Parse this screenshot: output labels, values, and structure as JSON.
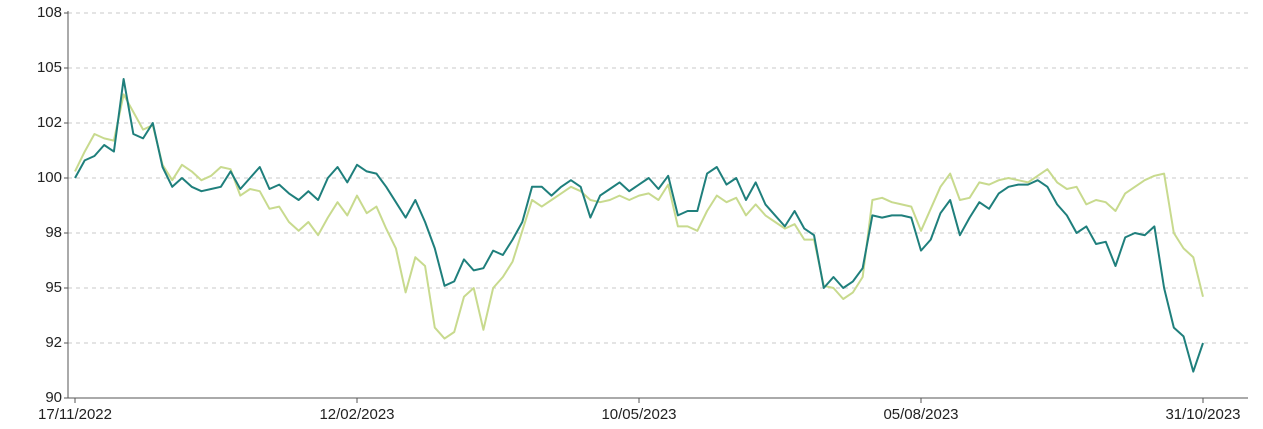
{
  "chart_data": {
    "type": "line",
    "x": [
      "17/11/2022",
      "20/11/2022",
      "23/11/2022",
      "26/11/2022",
      "29/11/2022",
      "02/12/2022",
      "05/12/2022",
      "08/12/2022",
      "11/12/2022",
      "14/12/2022",
      "17/12/2022",
      "20/12/2022",
      "23/12/2022",
      "26/12/2022",
      "29/12/2022",
      "01/01/2023",
      "04/01/2023",
      "07/01/2023",
      "10/01/2023",
      "13/01/2023",
      "16/01/2023",
      "19/01/2023",
      "22/01/2023",
      "25/01/2023",
      "28/01/2023",
      "31/01/2023",
      "03/02/2023",
      "06/02/2023",
      "09/02/2023",
      "12/02/2023",
      "15/02/2023",
      "18/02/2023",
      "21/02/2023",
      "24/02/2023",
      "27/02/2023",
      "02/03/2023",
      "05/03/2023",
      "08/03/2023",
      "11/03/2023",
      "14/03/2023",
      "17/03/2023",
      "20/03/2023",
      "23/03/2023",
      "26/03/2023",
      "29/03/2023",
      "01/04/2023",
      "04/04/2023",
      "07/04/2023",
      "10/04/2023",
      "13/04/2023",
      "16/04/2023",
      "19/04/2023",
      "22/04/2023",
      "25/04/2023",
      "28/04/2023",
      "01/05/2023",
      "04/05/2023",
      "07/05/2023",
      "10/05/2023",
      "13/05/2023",
      "16/05/2023",
      "19/05/2023",
      "22/05/2023",
      "25/05/2023",
      "28/05/2023",
      "31/05/2023",
      "03/06/2023",
      "06/06/2023",
      "09/06/2023",
      "12/06/2023",
      "15/06/2023",
      "18/06/2023",
      "21/06/2023",
      "24/06/2023",
      "27/06/2023",
      "30/06/2023",
      "03/07/2023",
      "06/07/2023",
      "09/07/2023",
      "12/07/2023",
      "15/07/2023",
      "18/07/2023",
      "21/07/2023",
      "24/07/2023",
      "27/07/2023",
      "30/07/2023",
      "02/08/2023",
      "05/08/2023",
      "08/08/2023",
      "11/08/2023",
      "14/08/2023",
      "17/08/2023",
      "20/08/2023",
      "23/08/2023",
      "26/08/2023",
      "29/08/2023",
      "01/09/2023",
      "04/09/2023",
      "07/09/2023",
      "10/09/2023",
      "13/09/2023",
      "16/09/2023",
      "19/09/2023",
      "22/09/2023",
      "25/09/2023",
      "28/09/2023",
      "01/10/2023",
      "04/10/2023",
      "07/10/2023",
      "10/10/2023",
      "13/10/2023",
      "16/10/2023",
      "19/10/2023",
      "22/10/2023",
      "25/10/2023",
      "28/10/2023",
      "31/10/2023"
    ],
    "series": [
      {
        "color": "#c8da8e",
        "values": [
          100.3,
          101.2,
          102.0,
          101.8,
          101.7,
          103.8,
          103.0,
          102.2,
          102.4,
          100.6,
          99.9,
          100.6,
          100.3,
          99.9,
          100.1,
          100.5,
          100.4,
          99.2,
          99.5,
          99.4,
          98.6,
          98.7,
          98.0,
          97.6,
          98.0,
          97.4,
          98.2,
          98.9,
          98.3,
          99.2,
          98.4,
          98.7,
          97.7,
          96.8,
          94.8,
          96.4,
          96.0,
          93.2,
          92.7,
          93.0,
          94.6,
          95.0,
          93.1,
          95.0,
          95.5,
          96.2,
          97.6,
          99.0,
          98.7,
          99.0,
          99.3,
          99.6,
          99.4,
          99.0,
          98.9,
          99.0,
          99.2,
          99.0,
          99.2,
          99.3,
          99.0,
          99.7,
          97.8,
          97.8,
          97.6,
          98.5,
          99.2,
          98.9,
          99.1,
          98.3,
          98.8,
          98.3,
          98.0,
          97.7,
          97.9,
          97.2,
          97.2,
          95.1,
          95.0,
          94.5,
          94.8,
          95.5,
          99.0,
          99.1,
          98.9,
          98.8,
          98.7,
          97.6,
          98.6,
          99.6,
          100.2,
          99.0,
          99.1,
          99.8,
          99.7,
          99.9,
          100.0,
          99.9,
          99.8,
          100.1,
          100.4,
          99.8,
          99.5,
          99.6,
          98.8,
          99.0,
          98.9,
          98.5,
          99.3,
          99.6,
          99.9,
          100.1,
          100.2,
          97.5,
          96.8,
          96.4,
          94.6
        ]
      },
      {
        "color": "#1f7f7c",
        "values": [
          100.0,
          100.8,
          101.0,
          101.5,
          101.2,
          104.5,
          102.0,
          101.8,
          102.5,
          100.5,
          99.6,
          100.0,
          99.6,
          99.4,
          99.5,
          99.6,
          100.3,
          99.5,
          100.0,
          100.5,
          99.5,
          99.7,
          99.3,
          99.0,
          99.4,
          99.0,
          100.0,
          100.5,
          99.8,
          100.6,
          100.3,
          100.2,
          99.6,
          98.9,
          98.2,
          99.0,
          98.0,
          96.8,
          95.1,
          95.3,
          96.3,
          95.8,
          95.9,
          96.7,
          96.5,
          97.2,
          98.0,
          99.6,
          99.6,
          99.2,
          99.6,
          99.9,
          99.6,
          98.2,
          99.2,
          99.5,
          99.8,
          99.4,
          99.7,
          100.0,
          99.5,
          100.1,
          98.3,
          98.5,
          98.5,
          100.2,
          100.5,
          99.7,
          100.0,
          99.0,
          99.8,
          98.8,
          98.3,
          97.8,
          98.5,
          97.7,
          97.4,
          95.0,
          95.5,
          95.0,
          95.3,
          95.9,
          98.3,
          98.2,
          98.3,
          98.3,
          98.2,
          96.7,
          97.2,
          98.4,
          99.0,
          97.4,
          98.2,
          98.9,
          98.6,
          99.3,
          99.6,
          99.7,
          99.7,
          99.9,
          99.6,
          98.8,
          98.3,
          97.5,
          97.8,
          97.0,
          97.1,
          96.0,
          97.3,
          97.5,
          97.4,
          97.8,
          95.0,
          93.2,
          92.8,
          91.2,
          92.5
        ]
      }
    ],
    "xlim": [
      "17/11/2022",
      "31/10/2023"
    ],
    "xticks": [
      "17/11/2022",
      "12/02/2023",
      "10/05/2023",
      "05/08/2023",
      "31/10/2023"
    ],
    "ylim": [
      90,
      107.5
    ],
    "yticks": [
      90,
      {
        "value": 92.5,
        "label": "92"
      },
      95,
      {
        "value": 97.5,
        "label": "98"
      },
      100,
      {
        "value": 102.5,
        "label": "102"
      },
      105,
      {
        "value": 107.5,
        "label": "108"
      }
    ],
    "grid": true
  }
}
